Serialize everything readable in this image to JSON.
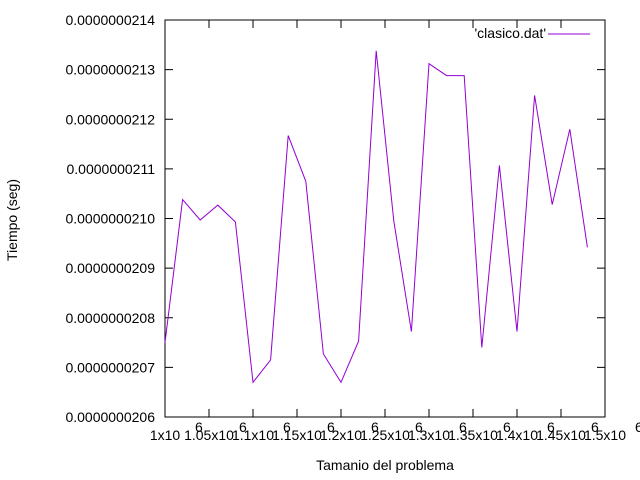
{
  "chart_data": {
    "type": "line",
    "title": "",
    "xlabel": "Tamanio del problema",
    "ylabel": "Tiempo (seg)",
    "xlim": [
      1000000,
      1500000
    ],
    "ylim": [
      2.06e-08,
      2.14e-08
    ],
    "grid": false,
    "legend_position": "top-right",
    "x_ticks": [
      {
        "value": 1000000,
        "label": "1x10",
        "exp": "6"
      },
      {
        "value": 1050000,
        "label": "1.05x10",
        "exp": "6"
      },
      {
        "value": 1100000,
        "label": "1.1x10",
        "exp": "6"
      },
      {
        "value": 1150000,
        "label": "1.15x10",
        "exp": "6"
      },
      {
        "value": 1200000,
        "label": "1.2x10",
        "exp": "6"
      },
      {
        "value": 1250000,
        "label": "1.25x10",
        "exp": "6"
      },
      {
        "value": 1300000,
        "label": "1.3x10",
        "exp": "6"
      },
      {
        "value": 1350000,
        "label": "1.35x10",
        "exp": "6"
      },
      {
        "value": 1400000,
        "label": "1.4x10",
        "exp": "6"
      },
      {
        "value": 1450000,
        "label": "1.45x10",
        "exp": "6"
      },
      {
        "value": 1500000,
        "label": "1.5x10",
        "exp": "6"
      }
    ],
    "y_ticks": [
      {
        "value": 2.06e-08,
        "label": "0.0000000206"
      },
      {
        "value": 2.07e-08,
        "label": "0.0000000207"
      },
      {
        "value": 2.08e-08,
        "label": "0.0000000208"
      },
      {
        "value": 2.09e-08,
        "label": "0.0000000209"
      },
      {
        "value": 2.1e-08,
        "label": "0.0000000210"
      },
      {
        "value": 2.11e-08,
        "label": "0.0000000211"
      },
      {
        "value": 2.12e-08,
        "label": "0.0000000212"
      },
      {
        "value": 2.13e-08,
        "label": "0.0000000213"
      },
      {
        "value": 2.14e-08,
        "label": "0.0000000214"
      }
    ],
    "series": [
      {
        "name": "'clasico.dat'",
        "color": "#9400d3",
        "x": [
          1000000,
          1020000,
          1040000,
          1060000,
          1080000,
          1100000,
          1120000,
          1140000,
          1160000,
          1180000,
          1200000,
          1220000,
          1240000,
          1260000,
          1280000,
          1300000,
          1320000,
          1340000,
          1360000,
          1380000,
          1400000,
          1420000,
          1440000,
          1460000,
          1480000
        ],
        "y": [
          2.075e-08,
          2.1038e-08,
          2.0997e-08,
          2.1027e-08,
          2.0993e-08,
          2.067e-08,
          2.0715e-08,
          2.1167e-08,
          2.1075e-08,
          2.0727e-08,
          2.067e-08,
          2.0753e-08,
          2.1338e-08,
          2.0995e-08,
          2.0772e-08,
          2.1312e-08,
          2.1288e-08,
          2.1288e-08,
          2.074e-08,
          2.1107e-08,
          2.0772e-08,
          2.1248e-08,
          2.1028e-08,
          2.118e-08,
          2.0942e-08
        ]
      }
    ]
  }
}
